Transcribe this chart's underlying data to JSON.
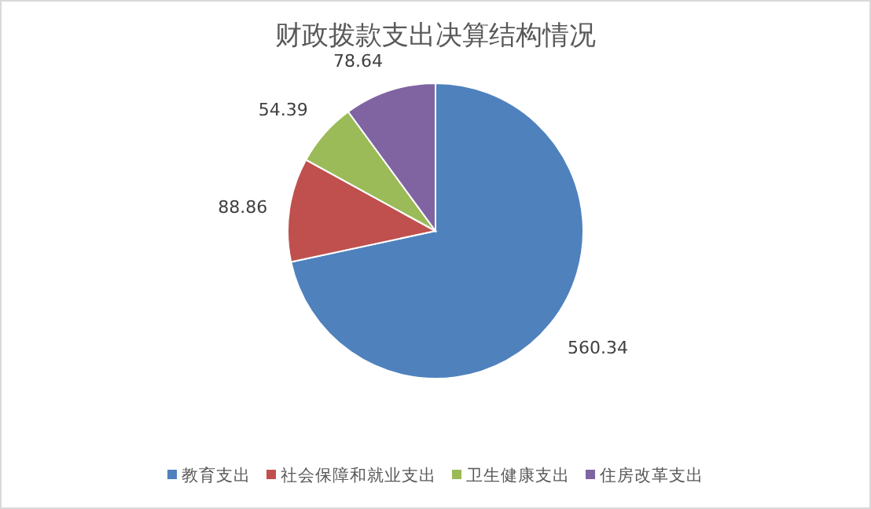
{
  "chart_data": {
    "type": "pie",
    "title": "财政拨款支出决算结构情况",
    "categories": [
      "教育支出",
      "社会保障和就业支出",
      "卫生健康支出",
      "住房改革支出"
    ],
    "values": [
      560.34,
      88.86,
      54.39,
      78.64
    ],
    "colors": [
      "#4f81bd",
      "#c0504d",
      "#9bbb59",
      "#8064a2"
    ],
    "data_labels": true,
    "legend": "bottom"
  }
}
